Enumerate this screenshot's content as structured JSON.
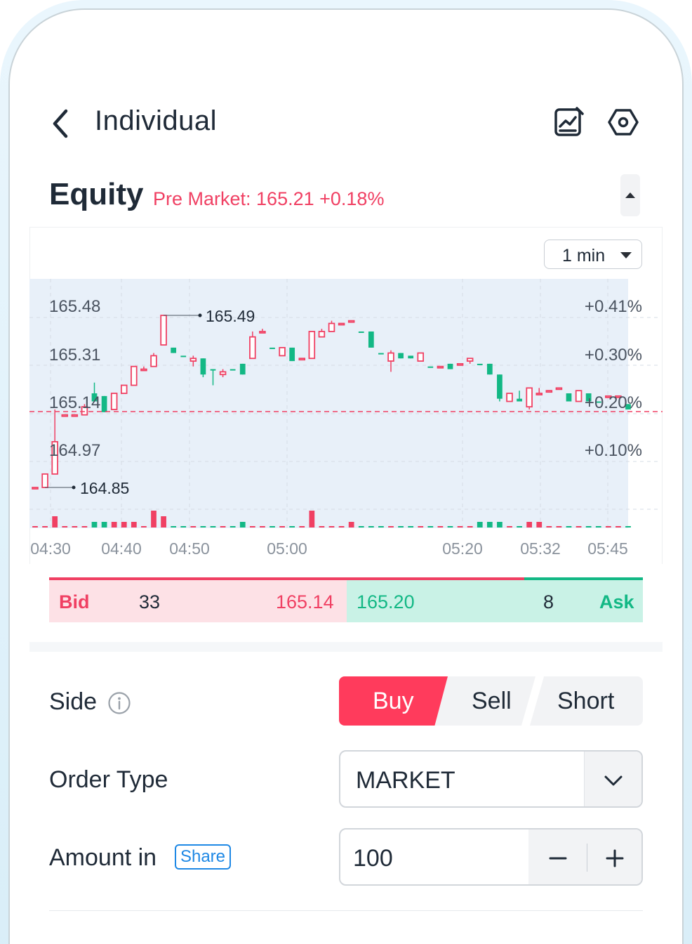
{
  "header": {
    "title": "Individual",
    "icons": [
      "back-chevron-icon",
      "chart-edit-icon",
      "settings-hex-icon"
    ]
  },
  "instrument": {
    "name": "Equity",
    "premarket": "Pre Market: 165.21 +0.18%",
    "collapse_icon": "caret-up-icon"
  },
  "chart": {
    "interval": "1 min"
  },
  "chart_data": {
    "type": "candlestick",
    "y_ticks": [
      "165.48",
      "165.31",
      "165.14",
      "164.97"
    ],
    "y_right_ticks": [
      "+0.41%",
      "+0.30%",
      "+0.20%",
      "+0.10%"
    ],
    "x_ticks": [
      "04:30",
      "04:40",
      "04:50",
      "05:00",
      "05:20",
      "05:32",
      "05:45"
    ],
    "annotations": {
      "high": "165.49",
      "low": "164.85"
    },
    "reference_price": 165.14,
    "ylim": [
      164.82,
      165.52
    ],
    "colors": {
      "up": "#f04063",
      "down": "#13b885",
      "reference_line": "#f04063"
    },
    "candles": [
      {
        "o": 164.85,
        "h": 164.85,
        "l": 164.85,
        "c": 164.85,
        "v": 0,
        "up": true
      },
      {
        "o": 164.85,
        "h": 164.9,
        "l": 164.85,
        "c": 164.9,
        "v": 0,
        "up": true
      },
      {
        "o": 164.9,
        "h": 165.14,
        "l": 164.9,
        "c": 165.02,
        "v": 2,
        "up": true
      },
      {
        "o": 165.12,
        "h": 165.12,
        "l": 165.12,
        "c": 165.12,
        "v": 0,
        "up": true
      },
      {
        "o": 165.12,
        "h": 165.12,
        "l": 165.12,
        "c": 165.12,
        "v": 0,
        "up": true
      },
      {
        "o": 165.12,
        "h": 165.16,
        "l": 165.12,
        "c": 165.15,
        "v": 0,
        "up": true
      },
      {
        "o": 165.2,
        "h": 165.24,
        "l": 165.17,
        "c": 165.17,
        "v": 1,
        "up": false
      },
      {
        "o": 165.19,
        "h": 165.19,
        "l": 165.13,
        "c": 165.13,
        "v": 1,
        "up": false
      },
      {
        "o": 165.14,
        "h": 165.2,
        "l": 165.14,
        "c": 165.2,
        "v": 1,
        "up": true
      },
      {
        "o": 165.2,
        "h": 165.23,
        "l": 165.2,
        "c": 165.23,
        "v": 1,
        "up": true
      },
      {
        "o": 165.23,
        "h": 165.3,
        "l": 165.23,
        "c": 165.3,
        "v": 1,
        "up": true
      },
      {
        "o": 165.29,
        "h": 165.3,
        "l": 165.29,
        "c": 165.29,
        "v": 0,
        "up": true
      },
      {
        "o": 165.3,
        "h": 165.35,
        "l": 165.3,
        "c": 165.34,
        "v": 3,
        "up": true
      },
      {
        "o": 165.38,
        "h": 165.49,
        "l": 165.38,
        "c": 165.49,
        "v": 2,
        "up": true
      },
      {
        "o": 165.37,
        "h": 165.37,
        "l": 165.35,
        "c": 165.35,
        "v": 0,
        "up": false
      },
      {
        "o": 165.34,
        "h": 165.34,
        "l": 165.34,
        "c": 165.34,
        "v": 0,
        "up": false
      },
      {
        "o": 165.33,
        "h": 165.34,
        "l": 165.3,
        "c": 165.32,
        "v": 0,
        "up": true
      },
      {
        "o": 165.33,
        "h": 165.33,
        "l": 165.26,
        "c": 165.27,
        "v": 0,
        "up": false
      },
      {
        "o": 165.29,
        "h": 165.29,
        "l": 165.23,
        "c": 165.29,
        "v": 0,
        "up": false
      },
      {
        "o": 165.27,
        "h": 165.29,
        "l": 165.26,
        "c": 165.28,
        "v": 0,
        "up": true
      },
      {
        "o": 165.29,
        "h": 165.29,
        "l": 165.29,
        "c": 165.29,
        "v": 0,
        "up": false
      },
      {
        "o": 165.27,
        "h": 165.31,
        "l": 165.27,
        "c": 165.31,
        "v": 1,
        "up": false
      },
      {
        "o": 165.33,
        "h": 165.43,
        "l": 165.33,
        "c": 165.41,
        "v": 0,
        "up": true
      },
      {
        "o": 165.43,
        "h": 165.44,
        "l": 165.43,
        "c": 165.43,
        "v": 0,
        "up": true
      },
      {
        "o": 165.37,
        "h": 165.37,
        "l": 165.37,
        "c": 165.37,
        "v": 0,
        "up": false
      },
      {
        "o": 165.34,
        "h": 165.37,
        "l": 165.34,
        "c": 165.37,
        "v": 0,
        "up": true
      },
      {
        "o": 165.37,
        "h": 165.37,
        "l": 165.32,
        "c": 165.32,
        "v": 0,
        "up": false
      },
      {
        "o": 165.33,
        "h": 165.33,
        "l": 165.33,
        "c": 165.33,
        "v": 0,
        "up": true
      },
      {
        "o": 165.33,
        "h": 165.43,
        "l": 165.33,
        "c": 165.43,
        "v": 3,
        "up": true
      },
      {
        "o": 165.41,
        "h": 165.44,
        "l": 165.41,
        "c": 165.43,
        "v": 0,
        "up": true
      },
      {
        "o": 165.43,
        "h": 165.47,
        "l": 165.43,
        "c": 165.46,
        "v": 0,
        "up": true
      },
      {
        "o": 165.46,
        "h": 165.46,
        "l": 165.46,
        "c": 165.46,
        "v": 0,
        "up": true
      },
      {
        "o": 165.47,
        "h": 165.47,
        "l": 165.47,
        "c": 165.47,
        "v": 1,
        "up": true
      },
      {
        "o": 165.43,
        "h": 165.43,
        "l": 165.43,
        "c": 165.43,
        "v": 0,
        "up": false
      },
      {
        "o": 165.43,
        "h": 165.43,
        "l": 165.37,
        "c": 165.37,
        "v": 0,
        "up": false
      },
      {
        "o": 165.35,
        "h": 165.35,
        "l": 165.35,
        "c": 165.35,
        "v": 0,
        "up": false
      },
      {
        "o": 165.32,
        "h": 165.36,
        "l": 165.28,
        "c": 165.35,
        "v": 0,
        "up": true
      },
      {
        "o": 165.35,
        "h": 165.35,
        "l": 165.33,
        "c": 165.33,
        "v": 0,
        "up": false
      },
      {
        "o": 165.34,
        "h": 165.34,
        "l": 165.33,
        "c": 165.33,
        "v": 0,
        "up": false
      },
      {
        "o": 165.32,
        "h": 165.35,
        "l": 165.32,
        "c": 165.35,
        "v": 0,
        "up": true
      },
      {
        "o": 165.3,
        "h": 165.3,
        "l": 165.3,
        "c": 165.3,
        "v": 0,
        "up": false
      },
      {
        "o": 165.3,
        "h": 165.3,
        "l": 165.3,
        "c": 165.3,
        "v": 0,
        "up": true
      },
      {
        "o": 165.31,
        "h": 165.31,
        "l": 165.29,
        "c": 165.29,
        "v": 0,
        "up": false
      },
      {
        "o": 165.31,
        "h": 165.31,
        "l": 165.31,
        "c": 165.31,
        "v": 0,
        "up": true
      },
      {
        "o": 165.32,
        "h": 165.33,
        "l": 165.31,
        "c": 165.33,
        "v": 0,
        "up": true
      },
      {
        "o": 165.31,
        "h": 165.31,
        "l": 165.31,
        "c": 165.31,
        "v": 1,
        "up": false
      },
      {
        "o": 165.31,
        "h": 165.31,
        "l": 165.27,
        "c": 165.27,
        "v": 1,
        "up": false
      },
      {
        "o": 165.27,
        "h": 165.27,
        "l": 165.17,
        "c": 165.18,
        "v": 1,
        "up": false
      },
      {
        "o": 165.17,
        "h": 165.2,
        "l": 165.17,
        "c": 165.2,
        "v": 0,
        "up": true
      },
      {
        "o": 165.18,
        "h": 165.21,
        "l": 165.17,
        "c": 165.17,
        "v": 0,
        "up": false
      },
      {
        "o": 165.15,
        "h": 165.22,
        "l": 165.14,
        "c": 165.22,
        "v": 1,
        "up": true
      },
      {
        "o": 165.2,
        "h": 165.22,
        "l": 165.2,
        "c": 165.2,
        "v": 1,
        "up": true
      },
      {
        "o": 165.21,
        "h": 165.21,
        "l": 165.21,
        "c": 165.21,
        "v": 0,
        "up": true
      },
      {
        "o": 165.22,
        "h": 165.22,
        "l": 165.22,
        "c": 165.22,
        "v": 0,
        "up": true
      },
      {
        "o": 165.2,
        "h": 165.2,
        "l": 165.17,
        "c": 165.17,
        "v": 0,
        "up": false
      },
      {
        "o": 165.17,
        "h": 165.21,
        "l": 165.17,
        "c": 165.21,
        "v": 0,
        "up": true
      },
      {
        "o": 165.2,
        "h": 165.2,
        "l": 165.17,
        "c": 165.17,
        "v": 0,
        "up": false
      },
      {
        "o": 165.17,
        "h": 165.17,
        "l": 165.17,
        "c": 165.17,
        "v": 0,
        "up": false
      },
      {
        "o": 165.19,
        "h": 165.19,
        "l": 165.19,
        "c": 165.19,
        "v": 0,
        "up": true
      },
      {
        "o": 165.19,
        "h": 165.19,
        "l": 165.19,
        "c": 165.19,
        "v": 0,
        "up": true
      },
      {
        "o": 165.16,
        "h": 165.16,
        "l": 165.14,
        "c": 165.14,
        "v": 0,
        "up": false
      }
    ]
  },
  "quote": {
    "bid_label": "Bid",
    "bid_size": "33",
    "bid_price": "165.14",
    "ask_price": "165.20",
    "ask_size": "8",
    "ask_label": "Ask",
    "bid_ratio": 0.8
  },
  "form": {
    "side_label": "Side",
    "side_options": [
      "Buy",
      "Sell",
      "Short"
    ],
    "side_selected": "Buy",
    "order_type_label": "Order Type",
    "order_type_value": "MARKET",
    "amount_label": "Amount in",
    "amount_unit": "Share",
    "amount_value": "100"
  }
}
